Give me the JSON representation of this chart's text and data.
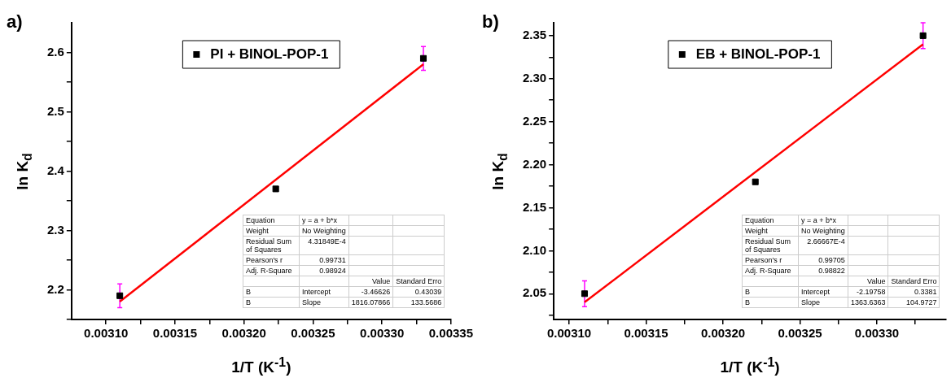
{
  "chart_data": [
    {
      "type": "scatter",
      "title": "a)",
      "xlabel": "1/T (K$^{-1}$)",
      "ylabel": "ln K$_{d}$",
      "legend": "top",
      "grid": false,
      "marker": "square",
      "xlim": [
        0.003075,
        0.00335
      ],
      "xticks": [
        {
          "value": 0.0031,
          "label": "0.00310"
        },
        {
          "value": 0.003125,
          "label": null
        },
        {
          "value": 0.00315,
          "label": "0.00315"
        },
        {
          "value": 0.003175,
          "label": null
        },
        {
          "value": 0.0032,
          "label": "0.00320"
        },
        {
          "value": 0.003225,
          "label": null
        },
        {
          "value": 0.00325,
          "label": "0.00325"
        },
        {
          "value": 0.003275,
          "label": null
        },
        {
          "value": 0.0033,
          "label": "0.00330"
        },
        {
          "value": 0.003325,
          "label": null
        },
        {
          "value": 0.00335,
          "label": "0.00335"
        }
      ],
      "ylim": [
        2.15,
        2.65
      ],
      "yticks": [
        {
          "value": 2.15,
          "label": null
        },
        2.2,
        {
          "value": 2.25,
          "label": null
        },
        2.3,
        {
          "value": 2.35,
          "label": null
        },
        2.4,
        {
          "value": 2.45,
          "label": null
        },
        2.5,
        {
          "value": 2.55,
          "label": null
        },
        2.6
      ],
      "series": [
        {
          "name": "PI + BINOL-POP-1",
          "color": "#000000",
          "x": [
            0.00311,
            0.003223,
            0.00333
          ],
          "values": [
            2.19,
            2.37,
            2.59
          ],
          "errors": [
            0.02,
            null,
            0.02
          ]
        },
        {
          "type": "line",
          "marker": "none",
          "color": "#ff0000",
          "x": [
            0.00311,
            0.00333
          ],
          "values": [
            2.18,
            2.58
          ]
        }
      ],
      "annotations": [
        "Equation",
        "y = a + b*x",
        "Weight",
        "No Weighting",
        "Residual Sum of Squares",
        "4.31849E-4",
        "Pearson's r",
        "0.99731",
        "Adj. R-Square",
        "0.98924",
        "Value",
        "Standard Erro",
        "B",
        "Intercept",
        "-3.46626",
        "0.43039",
        "B",
        "Slope",
        "1816.07866",
        "133.5686"
      ]
    },
    {
      "type": "scatter",
      "title": "b)",
      "xlabel": "1/T (K$^{-1}$)",
      "ylabel": "ln K$_{d}$",
      "legend": "top",
      "grid": false,
      "marker": "square",
      "xlim": [
        0.00309,
        0.003345
      ],
      "xticks": [
        {
          "value": 0.0031,
          "label": "0.00310"
        },
        {
          "value": 0.003125,
          "label": null
        },
        {
          "value": 0.00315,
          "label": "0.00315"
        },
        {
          "value": 0.003175,
          "label": null
        },
        {
          "value": 0.0032,
          "label": "0.00320"
        },
        {
          "value": 0.003225,
          "label": null
        },
        {
          "value": 0.00325,
          "label": "0.00325"
        },
        {
          "value": 0.003275,
          "label": null
        },
        {
          "value": 0.0033,
          "label": "0.00330"
        },
        {
          "value": 0.003325,
          "label": null
        }
      ],
      "ylim": [
        2.02,
        2.365
      ],
      "yticks": [
        {
          "value": 2.025,
          "label": null
        },
        2.05,
        {
          "value": 2.075,
          "label": null
        },
        {
          "value": 2.1,
          "label": "2.10"
        },
        {
          "value": 2.125,
          "label": null
        },
        2.15,
        {
          "value": 2.175,
          "label": null
        },
        {
          "value": 2.2,
          "label": "2.20"
        },
        {
          "value": 2.225,
          "label": null
        },
        2.25,
        {
          "value": 2.275,
          "label": null
        },
        {
          "value": 2.3,
          "label": "2.30"
        },
        {
          "value": 2.325,
          "label": null
        },
        2.35
      ],
      "series": [
        {
          "name": "EB + BINOL-POP-1",
          "color": "#000000",
          "x": [
            0.00311,
            0.003221,
            0.00333
          ],
          "values": [
            2.05,
            2.18,
            2.35
          ],
          "errors": [
            0.015,
            null,
            0.015
          ]
        },
        {
          "type": "line",
          "marker": "none",
          "color": "#ff0000",
          "x": [
            0.00311,
            0.00333
          ],
          "values": [
            2.04,
            2.34
          ]
        }
      ],
      "annotations": [
        "Equation",
        "y = a + b*x",
        "Weight",
        "No Weighting",
        "Residual Sum of Squares",
        "2.66667E-4",
        "Pearson's r",
        "0.99705",
        "Adj. R-Square",
        "0.98822",
        "Value",
        "Standard Erro",
        "B",
        "Intercept",
        "-2.19758",
        "0.3381",
        "B",
        "Slope",
        "1363.6363",
        "104.9727"
      ]
    }
  ]
}
